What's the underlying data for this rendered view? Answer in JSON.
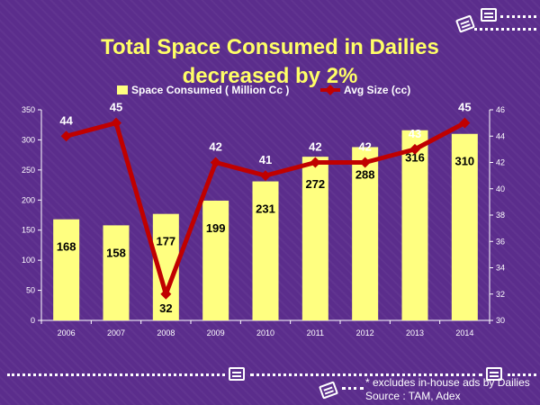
{
  "title_line1": "Total Space Consumed in Dailies",
  "title_line2": "decreased by 2%",
  "colors": {
    "background": "#5b2d8c",
    "title": "#ffff66",
    "bar": "#ffff80",
    "line": "#c00000",
    "axis": "#ffffff"
  },
  "chart_data": {
    "type": "bar",
    "categories": [
      "2006",
      "2007",
      "2008",
      "2009",
      "2010",
      "2011",
      "2012",
      "2013",
      "2014"
    ],
    "series": [
      {
        "name": "Space Consumed ( Million Cc )",
        "type": "bar",
        "axis": "left",
        "values": [
          168,
          158,
          177,
          199,
          231,
          272,
          288,
          316,
          310
        ]
      },
      {
        "name": "Avg Size (cc)",
        "type": "line",
        "axis": "right",
        "values": [
          44,
          45,
          32,
          42,
          41,
          42,
          42,
          43,
          45
        ]
      }
    ],
    "y_left": {
      "ylim": [
        0,
        350
      ],
      "ticks": [
        0,
        50,
        100,
        150,
        200,
        250,
        300,
        350
      ]
    },
    "y_right": {
      "ylim": [
        30,
        46
      ],
      "ticks": [
        30,
        32,
        34,
        36,
        38,
        40,
        42,
        44,
        46
      ]
    },
    "legend_position": "top",
    "grid": false
  },
  "footnote": "* excludes in-house ads by Dailies",
  "source": "Source : TAM, Adex"
}
